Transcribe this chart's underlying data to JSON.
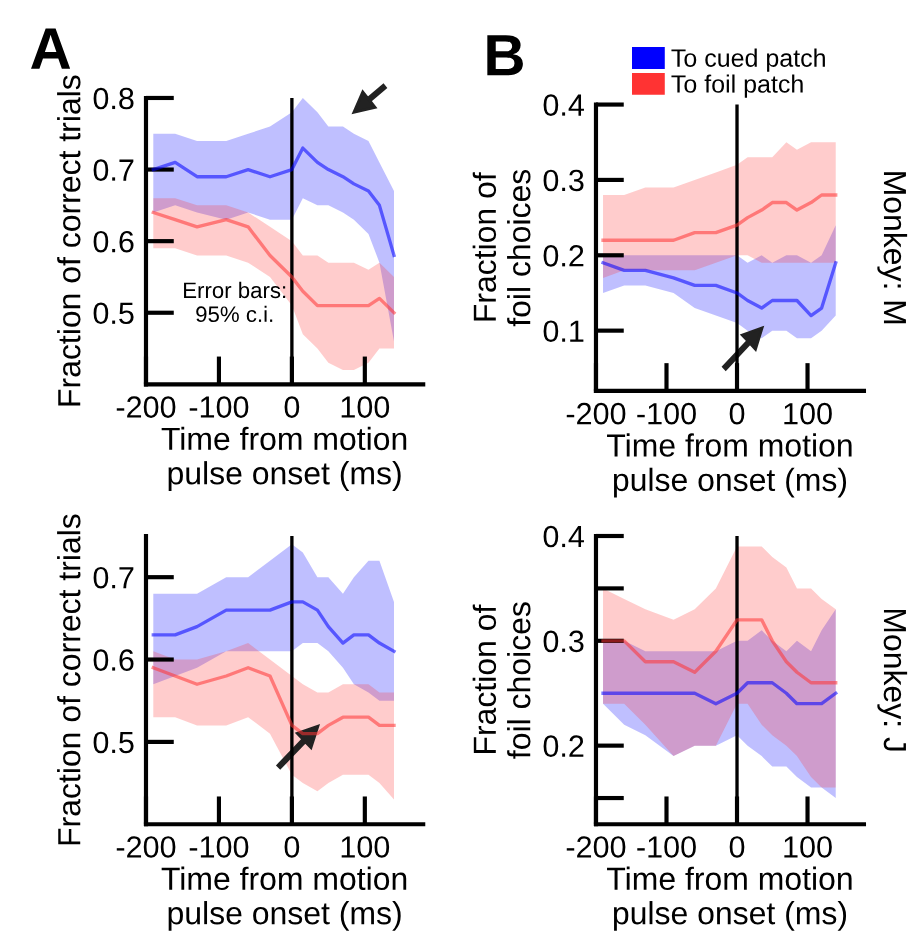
{
  "chart_data": [
    {
      "type": "line",
      "title": "A",
      "xlabel": "Time from motion\npulse onset (ms)",
      "ylabel": "Fraction of correct trials",
      "xlim": [
        -200,
        180
      ],
      "xticks": [
        -200,
        -100,
        0,
        100
      ],
      "ylim": [
        0.4,
        0.8
      ],
      "yticks": [
        0.5,
        0.6,
        0.7,
        0.8
      ],
      "grid": false,
      "legend": false,
      "x": [
        -190,
        -160,
        -130,
        -90,
        -60,
        -30,
        0,
        15,
        35,
        50,
        70,
        85,
        105,
        120,
        140
      ],
      "series": [
        {
          "color": "#0000ff",
          "values": [
            0.7,
            0.71,
            0.69,
            0.69,
            0.7,
            0.69,
            0.7,
            0.73,
            0.71,
            0.7,
            0.69,
            0.68,
            0.67,
            0.65,
            0.58
          ],
          "upper": [
            0.75,
            0.75,
            0.74,
            0.74,
            0.75,
            0.76,
            0.78,
            0.8,
            0.78,
            0.76,
            0.76,
            0.75,
            0.74,
            0.71,
            0.67
          ],
          "lower": [
            0.64,
            0.65,
            0.64,
            0.63,
            0.64,
            0.63,
            0.63,
            0.66,
            0.65,
            0.65,
            0.64,
            0.63,
            0.61,
            0.57,
            0.46
          ]
        },
        {
          "color": "#ff3333",
          "values": [
            0.64,
            0.63,
            0.62,
            0.63,
            0.62,
            0.58,
            0.55,
            0.53,
            0.51,
            0.51,
            0.51,
            0.51,
            0.51,
            0.52,
            0.5
          ],
          "upper": [
            0.66,
            0.66,
            0.65,
            0.65,
            0.64,
            0.62,
            0.6,
            0.58,
            0.58,
            0.57,
            0.57,
            0.57,
            0.56,
            0.57,
            0.55
          ],
          "lower": [
            0.59,
            0.59,
            0.58,
            0.58,
            0.57,
            0.55,
            0.51,
            0.47,
            0.45,
            0.43,
            0.42,
            0.42,
            0.43,
            0.45,
            0.45
          ]
        }
      ],
      "ref_lines": [
        {
          "axis": "x",
          "value": 0,
          "color": "#000000"
        }
      ],
      "annotations": [
        "Error bars:\n95% c.i."
      ]
    },
    {
      "type": "line",
      "title": "B",
      "xlabel": "Time from motion\npulse onset (ms)",
      "ylabel": "Fraction of\nfoil choices",
      "y2label": "Monkey: M",
      "xlim": [
        -200,
        180
      ],
      "xticks": [
        -200,
        -100,
        0,
        100
      ],
      "ylim": [
        0.02,
        0.4
      ],
      "yticks": [
        0.1,
        0.2,
        0.3,
        0.4
      ],
      "grid": false,
      "legend": "top",
      "x": [
        -190,
        -160,
        -130,
        -90,
        -60,
        -30,
        0,
        15,
        35,
        50,
        70,
        85,
        105,
        120,
        140
      ],
      "series": [
        {
          "name": "To cued patch",
          "color": "#0000ff",
          "values": [
            0.19,
            0.18,
            0.18,
            0.17,
            0.16,
            0.16,
            0.15,
            0.14,
            0.13,
            0.14,
            0.14,
            0.14,
            0.12,
            0.13,
            0.19
          ],
          "upper": [
            0.2,
            0.2,
            0.2,
            0.2,
            0.2,
            0.2,
            0.2,
            0.19,
            0.2,
            0.19,
            0.2,
            0.2,
            0.19,
            0.2,
            0.24
          ],
          "lower": [
            0.15,
            0.16,
            0.16,
            0.15,
            0.13,
            0.12,
            0.11,
            0.1,
            0.09,
            0.1,
            0.1,
            0.09,
            0.09,
            0.1,
            0.12
          ]
        },
        {
          "name": "To foil patch",
          "color": "#ff3333",
          "values": [
            0.22,
            0.22,
            0.22,
            0.22,
            0.23,
            0.23,
            0.24,
            0.25,
            0.26,
            0.27,
            0.27,
            0.26,
            0.27,
            0.28,
            0.28
          ],
          "upper": [
            0.28,
            0.28,
            0.29,
            0.29,
            0.3,
            0.31,
            0.32,
            0.33,
            0.33,
            0.33,
            0.35,
            0.34,
            0.35,
            0.35,
            0.35
          ],
          "lower": [
            0.17,
            0.18,
            0.18,
            0.18,
            0.18,
            0.19,
            0.2,
            0.2,
            0.19,
            0.19,
            0.19,
            0.19,
            0.19,
            0.19,
            0.19
          ]
        }
      ],
      "ref_lines": [
        {
          "axis": "x",
          "value": 0,
          "color": "#000000"
        }
      ]
    },
    {
      "type": "line",
      "xlabel": "Time from motion\npulse onset (ms)",
      "ylabel": "Fraction of correct trials",
      "xlim": [
        -200,
        180
      ],
      "xticks": [
        -200,
        -100,
        0,
        100
      ],
      "ylim": [
        0.4,
        0.75
      ],
      "yticks": [
        0.5,
        0.6,
        0.7
      ],
      "grid": false,
      "legend": false,
      "x": [
        -190,
        -160,
        -130,
        -90,
        -60,
        -30,
        0,
        15,
        35,
        50,
        70,
        85,
        105,
        120,
        140
      ],
      "series": [
        {
          "color": "#0000ff",
          "values": [
            0.63,
            0.63,
            0.64,
            0.66,
            0.66,
            0.66,
            0.67,
            0.67,
            0.66,
            0.64,
            0.62,
            0.63,
            0.63,
            0.62,
            0.61
          ],
          "upper": [
            0.68,
            0.68,
            0.68,
            0.7,
            0.7,
            0.72,
            0.74,
            0.73,
            0.7,
            0.7,
            0.68,
            0.7,
            0.72,
            0.72,
            0.67
          ],
          "lower": [
            0.57,
            0.58,
            0.59,
            0.61,
            0.61,
            0.61,
            0.61,
            0.62,
            0.62,
            0.61,
            0.59,
            0.57,
            0.56,
            0.55,
            0.55
          ]
        },
        {
          "color": "#ff3333",
          "values": [
            0.59,
            0.58,
            0.57,
            0.58,
            0.59,
            0.58,
            0.52,
            0.51,
            0.51,
            0.52,
            0.53,
            0.53,
            0.53,
            0.52,
            0.52
          ],
          "upper": [
            0.61,
            0.6,
            0.6,
            0.61,
            0.62,
            0.6,
            0.58,
            0.57,
            0.56,
            0.56,
            0.57,
            0.57,
            0.57,
            0.56,
            0.56
          ],
          "lower": [
            0.53,
            0.53,
            0.52,
            0.52,
            0.53,
            0.51,
            0.46,
            0.45,
            0.44,
            0.45,
            0.46,
            0.46,
            0.46,
            0.45,
            0.43
          ]
        }
      ],
      "ref_lines": [
        {
          "axis": "x",
          "value": 0,
          "color": "#000000"
        }
      ]
    },
    {
      "type": "line",
      "xlabel": "Time from motion\npulse onset (ms)",
      "ylabel": "Fraction of\nfoil choices",
      "y2label": "Monkey: J",
      "xlim": [
        -200,
        180
      ],
      "xticks": [
        -200,
        -100,
        0,
        100
      ],
      "ylim": [
        0.125,
        0.4
      ],
      "yticks": [
        {
          "value": 0.15,
          "label": null
        },
        0.2,
        0.3,
        {
          "value": 0.35,
          "label": null
        },
        0.4
      ],
      "grid": false,
      "legend": false,
      "x": [
        -190,
        -160,
        -130,
        -90,
        -60,
        -30,
        0,
        15,
        35,
        50,
        70,
        85,
        105,
        120,
        140
      ],
      "series": [
        {
          "color": "#0000ff",
          "values": [
            0.25,
            0.25,
            0.25,
            0.25,
            0.25,
            0.24,
            0.25,
            0.26,
            0.26,
            0.26,
            0.25,
            0.24,
            0.24,
            0.24,
            0.25
          ],
          "upper": [
            0.3,
            0.3,
            0.29,
            0.29,
            0.29,
            0.29,
            0.3,
            0.3,
            0.31,
            0.3,
            0.29,
            0.3,
            0.29,
            0.31,
            0.33
          ],
          "lower": [
            0.24,
            0.22,
            0.21,
            0.19,
            0.2,
            0.2,
            0.21,
            0.2,
            0.19,
            0.18,
            0.18,
            0.17,
            0.16,
            0.16,
            0.15
          ]
        },
        {
          "color": "#ff3333",
          "values": [
            0.3,
            0.3,
            0.28,
            0.28,
            0.27,
            0.29,
            0.32,
            0.32,
            0.32,
            0.3,
            0.28,
            0.27,
            0.26,
            0.26,
            0.26
          ],
          "upper": [
            0.35,
            0.34,
            0.33,
            0.32,
            0.33,
            0.35,
            0.39,
            0.39,
            0.39,
            0.38,
            0.37,
            0.35,
            0.35,
            0.34,
            0.33
          ],
          "lower": [
            0.24,
            0.24,
            0.22,
            0.19,
            0.2,
            0.2,
            0.24,
            0.24,
            0.22,
            0.21,
            0.2,
            0.19,
            0.17,
            0.16,
            0.16
          ]
        }
      ],
      "ref_lines": [
        {
          "axis": "x",
          "value": 0,
          "color": "#000000"
        }
      ]
    }
  ]
}
